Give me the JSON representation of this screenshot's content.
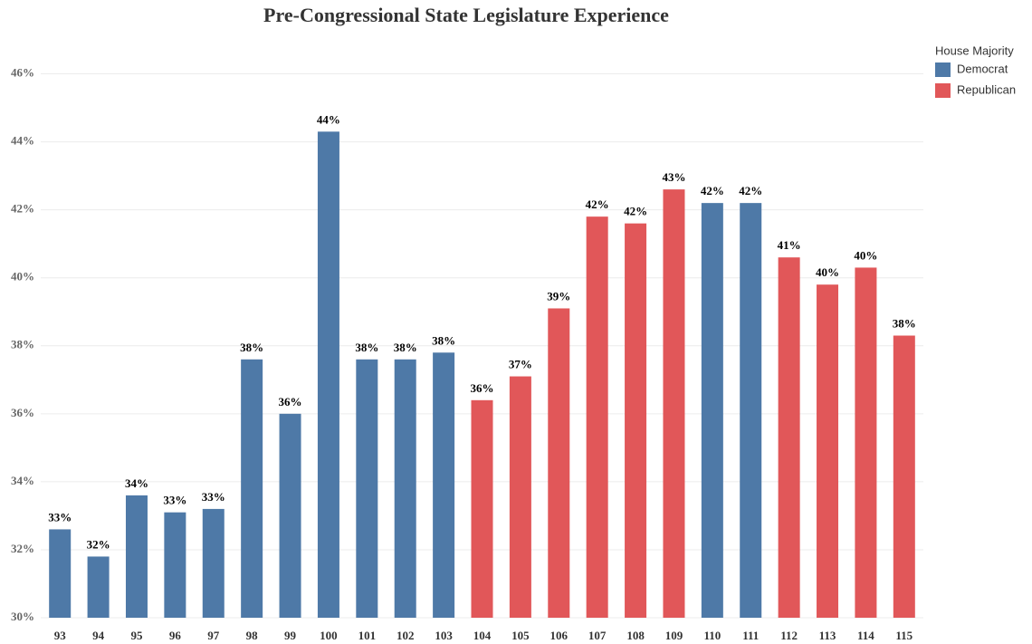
{
  "chart_data": {
    "type": "bar",
    "title": "Pre-Congressional State Legislature Experience",
    "legend_title": "House Majority",
    "categories": [
      "93",
      "94",
      "95",
      "96",
      "97",
      "98",
      "99",
      "100",
      "101",
      "102",
      "103",
      "104",
      "105",
      "106",
      "107",
      "108",
      "109",
      "110",
      "111",
      "112",
      "113",
      "114",
      "115"
    ],
    "series": [
      {
        "name": "Democrat",
        "color": "#4e79a7",
        "values": [
          32.6,
          31.8,
          33.6,
          33.1,
          33.2,
          37.6,
          36.0,
          44.3,
          37.6,
          37.6,
          37.8,
          null,
          null,
          null,
          null,
          null,
          null,
          42.2,
          42.2,
          null,
          null,
          null,
          null
        ],
        "value_labels": [
          "33%",
          "32%",
          "34%",
          "33%",
          "33%",
          "38%",
          "36%",
          "44%",
          "38%",
          "38%",
          "38%",
          null,
          null,
          null,
          null,
          null,
          null,
          "42%",
          "42%",
          null,
          null,
          null,
          null
        ]
      },
      {
        "name": "Republican",
        "color": "#e15759",
        "values": [
          null,
          null,
          null,
          null,
          null,
          null,
          null,
          null,
          null,
          null,
          null,
          36.4,
          37.1,
          39.1,
          41.8,
          41.6,
          42.6,
          null,
          null,
          40.6,
          39.8,
          40.3,
          38.3
        ],
        "value_labels": [
          null,
          null,
          null,
          null,
          null,
          null,
          null,
          null,
          null,
          null,
          null,
          "36%",
          "37%",
          "39%",
          "42%",
          "42%",
          "43%",
          null,
          null,
          "41%",
          "40%",
          "40%",
          "38%"
        ]
      }
    ],
    "ylim": [
      30,
      47
    ],
    "yticks": [
      {
        "value": 30,
        "label": "30%"
      },
      {
        "value": 32,
        "label": "32%"
      },
      {
        "value": 34,
        "label": "34%"
      },
      {
        "value": 36,
        "label": "36%"
      },
      {
        "value": 38,
        "label": "38%"
      },
      {
        "value": 40,
        "label": "40%"
      },
      {
        "value": 42,
        "label": "42%"
      },
      {
        "value": 44,
        "label": "44%"
      },
      {
        "value": 46,
        "label": "46%"
      }
    ],
    "grid": true,
    "legend": "right"
  }
}
